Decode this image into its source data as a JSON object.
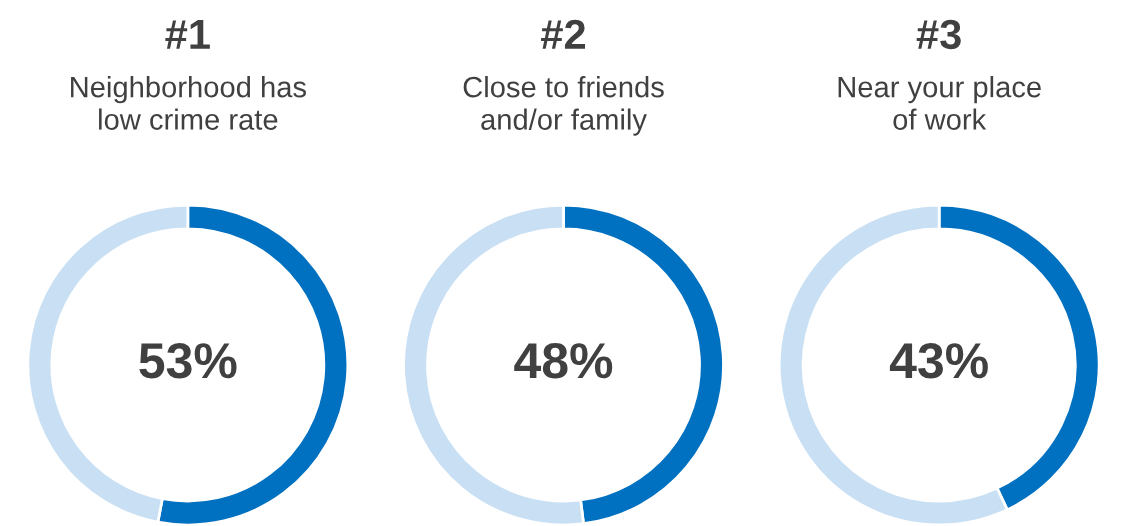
{
  "chart_data": [
    {
      "type": "donut",
      "title": "#1",
      "subtitle": "Neighborhood has\nlow crime rate",
      "categories": [
        null,
        null
      ],
      "values": [
        53,
        47
      ],
      "colors": [
        "#0070c0",
        "#c9e0f4"
      ],
      "value_labels": [
        "53%",
        null
      ]
    },
    {
      "type": "donut",
      "title": "#2",
      "subtitle": "Close to friends\nand/or family",
      "categories": [
        null,
        null
      ],
      "values": [
        48,
        52
      ],
      "colors": [
        "#0070c0",
        "#c9e0f4"
      ],
      "value_labels": [
        "48%",
        null
      ]
    },
    {
      "type": "donut",
      "title": "#3",
      "subtitle": "Near your place\nof work",
      "categories": [
        null,
        null
      ],
      "values": [
        43,
        57
      ],
      "colors": [
        "#0070c0",
        "#c9e0f4"
      ],
      "value_labels": [
        "43%",
        null
      ]
    }
  ]
}
